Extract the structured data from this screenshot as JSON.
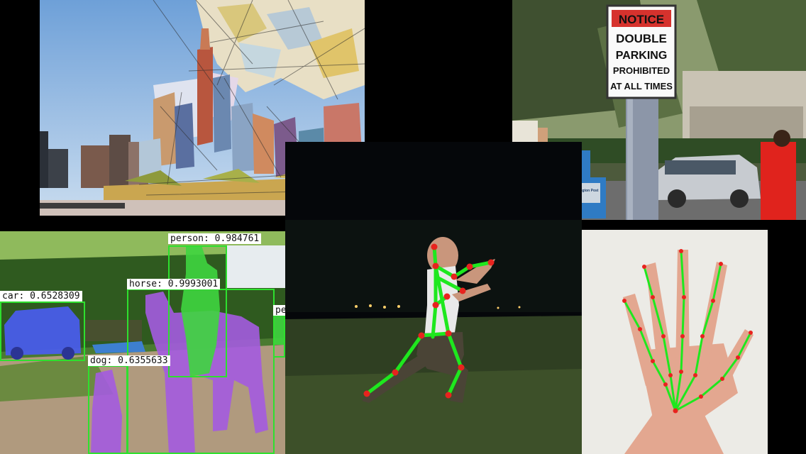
{
  "sign": {
    "header": "NOTICE",
    "lines": [
      "DOUBLE",
      "PARKING",
      "PROHIBITED",
      "AT ALL TIMES"
    ],
    "newspaper_box_label": "The Washington Post",
    "colors": {
      "red": "#d6322d",
      "pole": "#8c96a8"
    }
  },
  "detections": [
    {
      "label": "car: 0.6528309",
      "class": "car"
    },
    {
      "label": "person: 0.984761",
      "class": "person"
    },
    {
      "label": "horse: 0.9993001",
      "class": "horse"
    },
    {
      "label": "dog: 0.6355633",
      "class": "dog"
    },
    {
      "label": "pe",
      "class": "person-partial"
    }
  ],
  "overlay_colors": {
    "box": "#2ee02e",
    "car_mask": "#4a5cf0",
    "horse_mask": "#a45be0",
    "person_mask": "#3fd53f",
    "skeleton_line": "#1ee81e",
    "keypoint": "#e8231e"
  }
}
